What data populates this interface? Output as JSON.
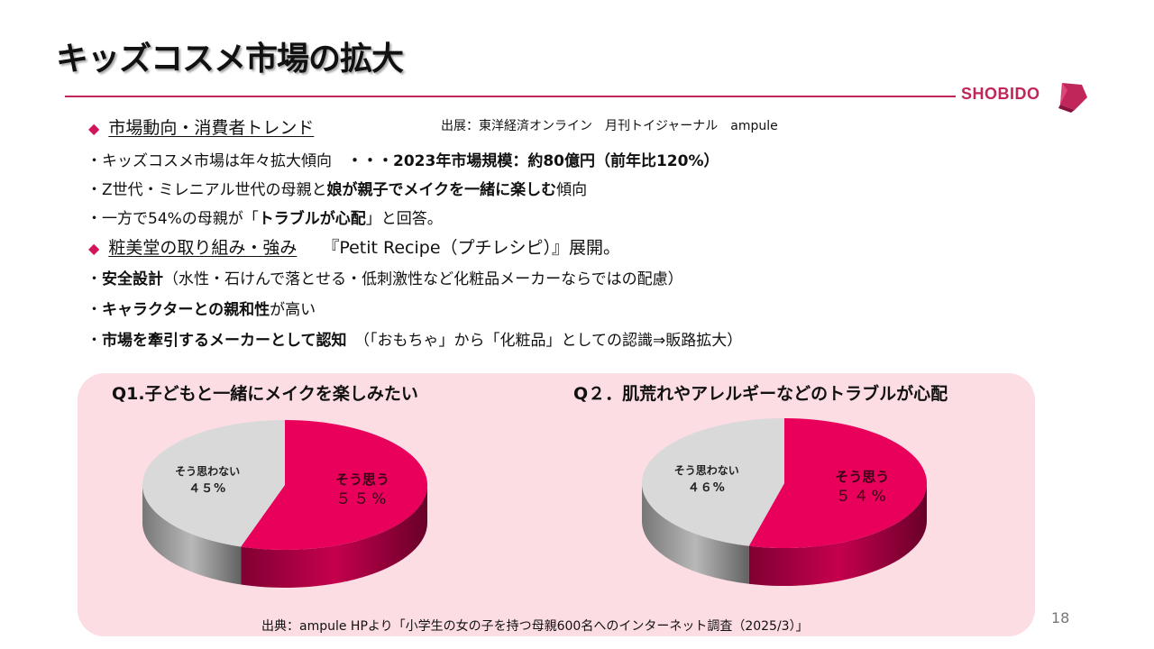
{
  "title": "キッズコスメ市場の拡大",
  "brand": {
    "name": "SHOBIDO",
    "color": "#c0265a"
  },
  "source_top": "出展：東洋経済オンライン　月刊トイジャーナル　ampule",
  "sections": [
    {
      "heading": "市場動向・消費者トレンド",
      "lines": [
        {
          "plain": "・キッズコスメ市場は年々拡大傾向　",
          "bold": "・・・2023年市場規模：約80億円（前年比120%）",
          "rest": ""
        },
        {
          "plain": "・Z世代・ミレニアル世代の母親と",
          "bold": "娘が親子でメイクを一緒に楽しむ",
          "rest": "傾向"
        },
        {
          "plain": "・一方で54%の母親が「",
          "bold": "トラブルが心配",
          "rest": "」と回答。"
        }
      ]
    },
    {
      "heading": "粧美堂の取り組み・強み",
      "heading_note": "『Petit Recipe（プチレシピ）』展開。",
      "lines": [
        {
          "plain": "・",
          "bold": "安全設計",
          "rest": "（水性・石けんで落とせる・低刺激性など化粧品メーカーならではの配慮）"
        },
        {
          "plain": "・",
          "bold": "キャラクターとの親和性",
          "rest": "が高い"
        },
        {
          "plain": "・",
          "bold": "市場を牽引するメーカーとして認知",
          "rest": "　（「おもちゃ」から「化粧品」としての認識⇒販路拡大）"
        }
      ]
    }
  ],
  "chart_data": [
    {
      "type": "pie",
      "title": "Q1.子どもと一緒にメイクを楽しみたい",
      "slices": [
        {
          "label": "そう思う",
          "value_label": "５５%",
          "value": 55,
          "color": "#e8005a"
        },
        {
          "label": "そう思わない",
          "value_label": "４５%",
          "value": 45,
          "color": "#d9d9d9"
        }
      ]
    },
    {
      "type": "pie",
      "title": "Q２．肌荒れやアレルギーなどのトラブルが心配",
      "slices": [
        {
          "label": "そう思う",
          "value_label": "５４%",
          "value": 54,
          "color": "#e8005a"
        },
        {
          "label": "そう思わない",
          "value_label": "４６%",
          "value": 46,
          "color": "#d9d9d9"
        }
      ]
    }
  ],
  "source_bottom": "出典：ampule HPより「小学生の女の子を持つ母親600名へのインターネット調査（2025/3）」",
  "page_number": "18"
}
